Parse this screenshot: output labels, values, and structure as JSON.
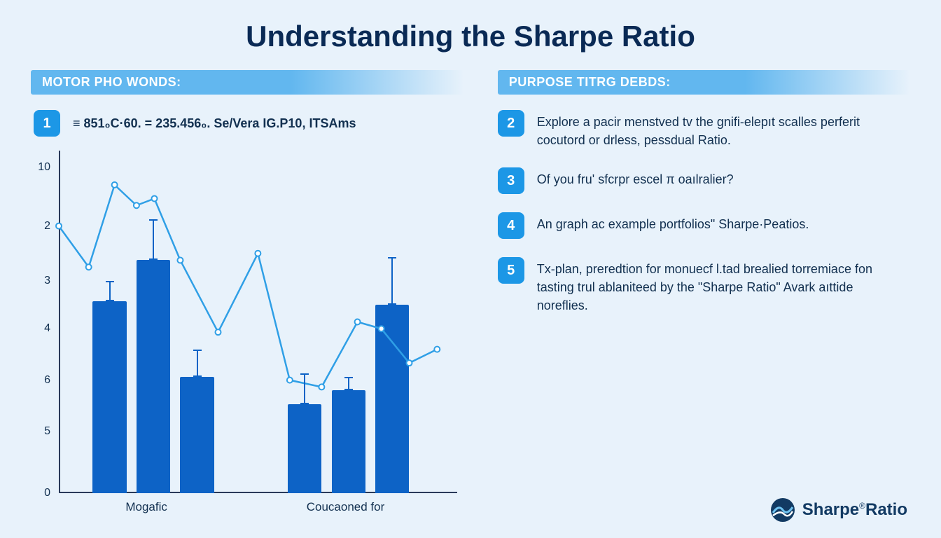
{
  "colors": {
    "page_bg": "#e8f2fb",
    "title": "#0a2a55",
    "section_bg": "#62b7ef",
    "section_text": "#ffffff",
    "badge_bg": "#1c97e6",
    "body_text": "#123050",
    "bar_fill": "#0d63c6",
    "line_stroke": "#2f9fe6",
    "axis": "#2a3a5a",
    "brand": "#123a63"
  },
  "typography": {
    "title_fontsize": 42,
    "section_fontsize": 18,
    "badge_fontsize": 20,
    "body_fontsize": 18,
    "brand_fontsize": 24
  },
  "title": "Understanding the Sharpe Ratio",
  "left": {
    "header": "MOTOR PHO WONDS:",
    "formula": {
      "num": "1",
      "text": "≡ 851₀C·60. = 235.456₀. Se/Vera IG.P10, ITSAms"
    },
    "chart": {
      "type": "bar+line",
      "ylim": [
        0,
        10
      ],
      "y_ticks": [
        {
          "pos": 1.0,
          "label": "0"
        },
        {
          "pos": 0.82,
          "label": "5"
        },
        {
          "pos": 0.67,
          "label": "6"
        },
        {
          "pos": 0.52,
          "label": "4"
        },
        {
          "pos": 0.38,
          "label": "3"
        },
        {
          "pos": 0.22,
          "label": "2"
        },
        {
          "pos": 0.05,
          "label": "10"
        }
      ],
      "x_ticks": [
        {
          "pos": 0.22,
          "label": "Mogafic"
        },
        {
          "pos": 0.72,
          "label": "Coucaoned for"
        }
      ],
      "bar_width_pct": 8.5,
      "error_color": "#0d63c6",
      "bars": [
        {
          "x": 0.085,
          "h": 0.56,
          "err": 0.06
        },
        {
          "x": 0.195,
          "h": 0.68,
          "err": 0.12
        },
        {
          "x": 0.305,
          "h": 0.34,
          "err": 0.08
        },
        {
          "x": 0.575,
          "h": 0.26,
          "err": 0.09
        },
        {
          "x": 0.685,
          "h": 0.3,
          "err": 0.04
        },
        {
          "x": 0.795,
          "h": 0.55,
          "err": 0.14
        }
      ],
      "line_points": [
        {
          "x": 0.0,
          "y": 0.78
        },
        {
          "x": 0.075,
          "y": 0.66
        },
        {
          "x": 0.14,
          "y": 0.9
        },
        {
          "x": 0.195,
          "y": 0.84
        },
        {
          "x": 0.24,
          "y": 0.86
        },
        {
          "x": 0.305,
          "y": 0.68
        },
        {
          "x": 0.4,
          "y": 0.47
        },
        {
          "x": 0.5,
          "y": 0.7
        },
        {
          "x": 0.58,
          "y": 0.33
        },
        {
          "x": 0.66,
          "y": 0.31
        },
        {
          "x": 0.75,
          "y": 0.5
        },
        {
          "x": 0.81,
          "y": 0.48
        },
        {
          "x": 0.88,
          "y": 0.38
        },
        {
          "x": 0.95,
          "y": 0.42
        }
      ],
      "marker_radius": 4,
      "line_width": 2.5
    }
  },
  "right": {
    "header": "PURPOSE TITRG DEBDS:",
    "items": [
      {
        "num": "2",
        "text": "Explore a pacir menstved tv the gnifi-elepıt scalles perferit cocutord or drless, pessdual Ratio."
      },
      {
        "num": "3",
        "text": "Of you fru' sfcrpr escel π oaılralier?"
      },
      {
        "num": "4",
        "text": "An graph ac example portfolios\" Sharpe·Peatios."
      },
      {
        "num": "5",
        "text": "Tx-plan, preredtion for monuecf l.tad brealied torremiace fon tasting trul ablaniteed by the \"Sharpe Ratio\" Avark aıttide noreflies."
      }
    ]
  },
  "brand": {
    "name": "Sharpe",
    "suffix": "Ratio"
  }
}
